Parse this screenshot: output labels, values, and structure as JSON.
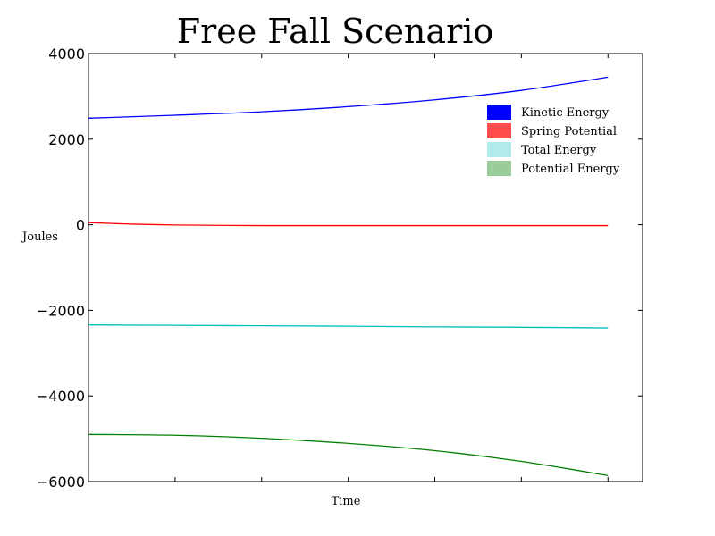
{
  "chart_data": {
    "type": "line",
    "title": "Free Fall Scenario",
    "xlabel": "Time",
    "ylabel": "Joules",
    "ylim": [
      -6000,
      4000
    ],
    "yticks": [
      4000,
      2000,
      0,
      -2000,
      -4000,
      -6000
    ],
    "ytick_labels": [
      "4000",
      "2000",
      "0",
      "−2000",
      "−4000",
      "−6000"
    ],
    "xlim": [
      0,
      6.4
    ],
    "xtick_labels_shown": false,
    "grid": false,
    "legend": {
      "placement": "upper-right"
    },
    "series": [
      {
        "name": "Kinetic Energy",
        "color": "#0000ff",
        "legend_color": "#0000ff",
        "x": [
          0,
          1,
          2,
          3,
          4,
          5,
          6
        ],
        "y": [
          2490,
          2560,
          2640,
          2760,
          2920,
          3140,
          3450
        ]
      },
      {
        "name": "Spring Potential",
        "color": "#ff0000",
        "legend_color": "#ff4d4d",
        "x": [
          0,
          0.5,
          1,
          2,
          3,
          4,
          5,
          6
        ],
        "y": [
          50,
          15,
          -5,
          -20,
          -20,
          -20,
          -20,
          -20
        ]
      },
      {
        "name": "Total Energy",
        "color": "#00bfbf",
        "legend_color": "#b2ebeb",
        "x": [
          0,
          1,
          2,
          3,
          4,
          5,
          6
        ],
        "y": [
          -2340,
          -2350,
          -2360,
          -2370,
          -2385,
          -2395,
          -2410
        ]
      },
      {
        "name": "Potential Energy",
        "color": "#008000",
        "legend_color": "#99cc99",
        "x": [
          0,
          1,
          2,
          3,
          4,
          5,
          6
        ],
        "y": [
          -4900,
          -4920,
          -4990,
          -5110,
          -5280,
          -5530,
          -5860
        ]
      }
    ]
  }
}
